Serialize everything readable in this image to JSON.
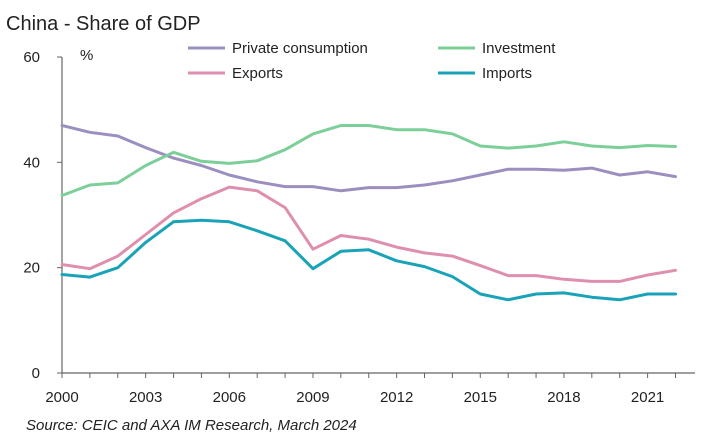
{
  "chart_data": {
    "type": "line",
    "title": "China - Share of GDP",
    "ylabel": "%",
    "xlabel": "",
    "source": "Source: CEIC and AXA IM Research, March 2024",
    "x": [
      2000,
      2001,
      2002,
      2003,
      2004,
      2005,
      2006,
      2007,
      2008,
      2009,
      2010,
      2011,
      2012,
      2013,
      2014,
      2015,
      2016,
      2017,
      2018,
      2019,
      2020,
      2021,
      2022
    ],
    "xlim": [
      2000,
      2022.7
    ],
    "ylim": [
      0,
      60
    ],
    "xticks": [
      2000,
      2003,
      2006,
      2009,
      2012,
      2015,
      2018,
      2021
    ],
    "xtick_labels": [
      "2000",
      "2003",
      "2006",
      "2009",
      "2012",
      "2015",
      "2018",
      "2021"
    ],
    "yticks": [
      0,
      20,
      40,
      60
    ],
    "ytick_labels": [
      "0",
      "20",
      "40",
      "60"
    ],
    "grid": false,
    "legend": "top",
    "series": [
      {
        "name": "Private consumption",
        "color": "#9b8fbf",
        "values": [
          47.0,
          45.7,
          45.0,
          42.8,
          40.8,
          39.4,
          37.6,
          36.3,
          35.4,
          35.4,
          34.6,
          35.2,
          35.2,
          35.7,
          36.5,
          37.6,
          38.7,
          38.7,
          38.5,
          38.9,
          37.6,
          38.2,
          37.3
        ]
      },
      {
        "name": "Investment",
        "color": "#7dcf9a",
        "values": [
          33.7,
          35.7,
          36.1,
          39.4,
          41.9,
          40.2,
          39.8,
          40.3,
          42.4,
          45.4,
          47.0,
          47.0,
          46.2,
          46.2,
          45.4,
          43.1,
          42.7,
          43.1,
          43.9,
          43.1,
          42.8,
          43.2,
          43.0
        ]
      },
      {
        "name": "Exports",
        "color": "#df8fae",
        "values": [
          20.6,
          19.8,
          22.2,
          26.3,
          30.4,
          33.1,
          35.3,
          34.6,
          31.4,
          23.5,
          26.1,
          25.4,
          23.9,
          22.8,
          22.2,
          20.4,
          18.5,
          18.5,
          17.8,
          17.4,
          17.4,
          18.6,
          19.5
        ]
      },
      {
        "name": "Imports",
        "color": "#1aa3b8",
        "values": [
          18.7,
          18.2,
          20.0,
          24.8,
          28.7,
          29.0,
          28.7,
          27.0,
          25.1,
          19.8,
          23.1,
          23.4,
          21.3,
          20.2,
          18.3,
          15.0,
          13.9,
          15.0,
          15.2,
          14.4,
          13.9,
          15.0,
          15.0
        ]
      }
    ]
  }
}
